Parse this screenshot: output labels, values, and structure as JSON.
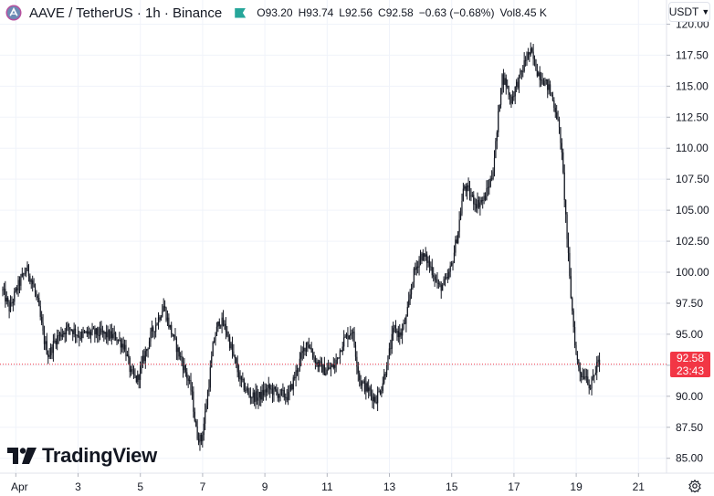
{
  "header": {
    "symbol": "AAVE / TetherUS · 1h · Binance",
    "ohlc": [
      {
        "k": "O",
        "v": "93.20"
      },
      {
        "k": "H",
        "v": "93.74"
      },
      {
        "k": "L",
        "v": "92.56"
      },
      {
        "k": "C",
        "v": "92.58"
      },
      {
        "k": "",
        "v": "−0.63 (−0.68%)"
      },
      {
        "k": "Vol",
        "v": "8.45 K"
      }
    ],
    "currency": "USDT"
  },
  "watermark": "TradingView",
  "last_price": {
    "value": "92.58",
    "countdown": "23:43"
  },
  "colors": {
    "up": "#089981",
    "down": "#f23645",
    "candle": "#131722",
    "grid": "#f0f3fa",
    "accent": "#2962ff"
  },
  "chart_data": {
    "type": "candlestick",
    "y_ticks": [
      85.0,
      87.5,
      90.0,
      92.5,
      95.0,
      97.5,
      100.0,
      102.5,
      105.0,
      107.5,
      110.0,
      112.5,
      115.0,
      117.5,
      120.0
    ],
    "ylim": [
      83.8,
      121.8
    ],
    "x_ticks": [
      "Apr",
      "3",
      "5",
      "7",
      "9",
      "11",
      "13",
      "15",
      "17",
      "19",
      "21"
    ],
    "x_tick_days": [
      1,
      3,
      5,
      7,
      9,
      11,
      13,
      15,
      17,
      19,
      21
    ],
    "xlim_days": [
      0.58,
      21.9
    ],
    "last_close": 92.58,
    "price_anchors": [
      [
        0.58,
        98.5
      ],
      [
        0.8,
        97.0
      ],
      [
        1.05,
        98.8
      ],
      [
        1.35,
        100.3
      ],
      [
        1.5,
        99.4
      ],
      [
        1.7,
        97.6
      ],
      [
        1.9,
        94.6
      ],
      [
        2.05,
        93.3
      ],
      [
        2.3,
        94.7
      ],
      [
        2.7,
        95.6
      ],
      [
        3.05,
        94.9
      ],
      [
        3.4,
        95.1
      ],
      [
        3.8,
        95.0
      ],
      [
        4.2,
        94.8
      ],
      [
        4.5,
        94.0
      ],
      [
        4.7,
        91.8
      ],
      [
        4.9,
        91.3
      ],
      [
        5.1,
        93.0
      ],
      [
        5.35,
        95.0
      ],
      [
        5.6,
        96.4
      ],
      [
        5.75,
        97.3
      ],
      [
        5.9,
        95.9
      ],
      [
        6.2,
        93.7
      ],
      [
        6.45,
        92.0
      ],
      [
        6.65,
        90.3
      ],
      [
        6.8,
        87.0
      ],
      [
        6.95,
        86.4
      ],
      [
        7.05,
        88.0
      ],
      [
        7.2,
        91.0
      ],
      [
        7.35,
        94.4
      ],
      [
        7.55,
        96.2
      ],
      [
        7.75,
        95.4
      ],
      [
        7.95,
        93.6
      ],
      [
        8.2,
        91.3
      ],
      [
        8.5,
        90.1
      ],
      [
        8.8,
        89.9
      ],
      [
        9.1,
        90.6
      ],
      [
        9.45,
        90.2
      ],
      [
        9.75,
        90.0
      ],
      [
        10.05,
        92.3
      ],
      [
        10.35,
        94.5
      ],
      [
        10.65,
        92.7
      ],
      [
        10.95,
        92.0
      ],
      [
        11.25,
        92.5
      ],
      [
        11.5,
        94.4
      ],
      [
        11.8,
        95.4
      ],
      [
        12.05,
        91.2
      ],
      [
        12.35,
        90.4
      ],
      [
        12.55,
        89.7
      ],
      [
        12.75,
        90.8
      ],
      [
        12.95,
        92.9
      ],
      [
        13.15,
        95.5
      ],
      [
        13.35,
        94.9
      ],
      [
        13.55,
        96.3
      ],
      [
        13.75,
        99.6
      ],
      [
        14.0,
        101.4
      ],
      [
        14.2,
        101.0
      ],
      [
        14.4,
        100.0
      ],
      [
        14.6,
        98.7
      ],
      [
        14.85,
        99.3
      ],
      [
        15.0,
        100.6
      ],
      [
        15.2,
        103.3
      ],
      [
        15.4,
        107.0
      ],
      [
        15.6,
        106.2
      ],
      [
        15.8,
        105.5
      ],
      [
        16.05,
        105.9
      ],
      [
        16.3,
        107.8
      ],
      [
        16.45,
        111.1
      ],
      [
        16.6,
        115.8
      ],
      [
        16.75,
        115.2
      ],
      [
        16.9,
        113.8
      ],
      [
        17.05,
        114.9
      ],
      [
        17.25,
        116.1
      ],
      [
        17.4,
        117.4
      ],
      [
        17.55,
        117.7
      ],
      [
        17.75,
        116.2
      ],
      [
        17.95,
        115.5
      ],
      [
        18.15,
        114.7
      ],
      [
        18.35,
        113.0
      ],
      [
        18.5,
        110.7
      ],
      [
        18.6,
        107.0
      ],
      [
        18.7,
        103.0
      ],
      [
        18.8,
        99.0
      ],
      [
        18.9,
        96.0
      ],
      [
        19.0,
        93.2
      ],
      [
        19.1,
        92.2
      ],
      [
        19.2,
        91.6
      ],
      [
        19.3,
        91.9
      ],
      [
        19.45,
        90.7
      ],
      [
        19.6,
        91.9
      ],
      [
        19.72,
        93.2
      ],
      [
        19.78,
        92.58
      ]
    ]
  }
}
